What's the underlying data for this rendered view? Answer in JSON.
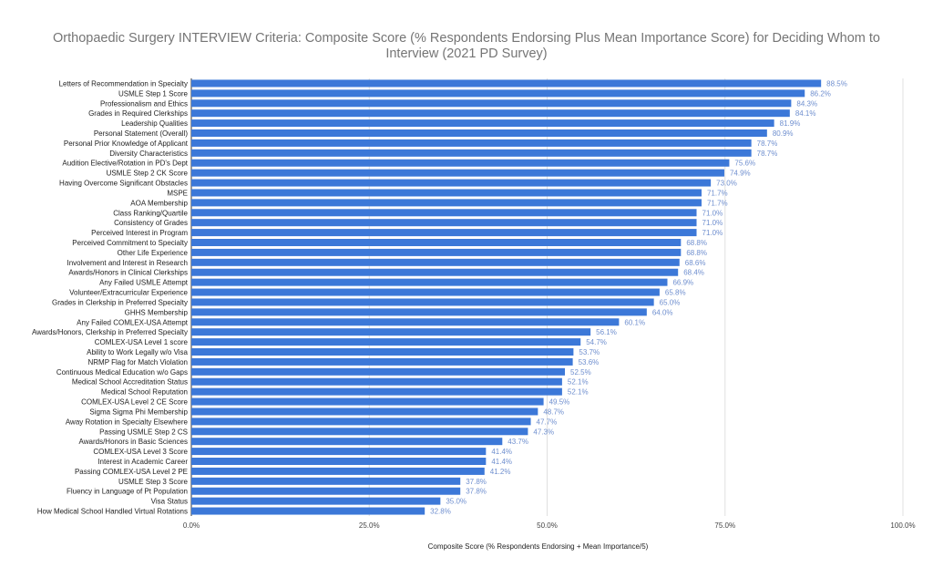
{
  "chart_data": {
    "type": "bar",
    "orientation": "horizontal",
    "title": "Orthopaedic Surgery INTERVIEW Criteria: Composite Score (% Respondents Endorsing Plus Mean Importance Score) for Deciding Whom to Interview (2021 PD Survey)",
    "xlabel": "Composite Score (% Respondents Endorsing + Mean Importance/5)",
    "ylabel": "",
    "xlim": [
      0,
      100
    ],
    "x_ticks": [
      "0.0%",
      "25.0%",
      "50.0%",
      "75.0%",
      "100.0%"
    ],
    "x_tick_values": [
      0,
      25,
      50,
      75,
      100
    ],
    "grid": "vertical",
    "bar_color": "#3c78d8",
    "value_label_color": "#6f8fcf",
    "categories": [
      "Letters of Recommendation in Specialty",
      "USMLE Step 1 Score",
      "Professionalism and Ethics",
      "Grades in Required Clerkships",
      "Leadership Qualities",
      "Personal Statement (Overall)",
      "Personal Prior Knowledge of Applicant",
      "Diversity Characteristics",
      "Audition Elective/Rotation in PD's Dept",
      "USMLE Step 2 CK Score",
      "Having Overcome Significant Obstacles",
      "MSPE",
      "AOA Membership",
      "Class Ranking/Quartile",
      "Consistency of Grades",
      "Perceived Interest in Program",
      "Perceived Commitment to Specialty",
      "Other Life Experience",
      "Involvement and Interest in Research",
      "Awards/Honors in Clinical Clerkships",
      "Any Failed USMLE Attempt",
      "Volunteer/Extracurricular Experience",
      "Grades in Clerkship in Preferred Specialty",
      "GHHS Membership",
      "Any Failed COMLEX-USA Attempt",
      "Awards/Honors, Clerkship in Preferred Specialty",
      "COMLEX-USA Level 1 score",
      "Ability to Work Legally w/o Visa",
      "NRMP Flag for Match Violation",
      "Continuous Medical Education w/o Gaps",
      "Medical School Accreditation Status",
      "Medical School Reputation",
      "COMLEX-USA Level 2 CE Score",
      "Sigma Sigma Phi Membership",
      "Away Rotation in Specialty Elsewhere",
      "Passing USMLE Step 2 CS",
      "Awards/Honors in Basic Sciences",
      "COMLEX-USA Level 3 Score",
      "Interest in Academic Career",
      "Passing COMLEX-USA Level 2 PE",
      "USMLE Step 3 Score",
      "Fluency in Language of Pt Population",
      "Visa Status",
      "How Medical School Handled Virtual Rotations"
    ],
    "values": [
      88.5,
      86.2,
      84.3,
      84.1,
      81.9,
      80.9,
      78.7,
      78.7,
      75.6,
      74.9,
      73.0,
      71.7,
      71.7,
      71.0,
      71.0,
      71.0,
      68.8,
      68.8,
      68.6,
      68.4,
      66.9,
      65.8,
      65.0,
      64.0,
      60.1,
      56.1,
      54.7,
      53.7,
      53.6,
      52.5,
      52.1,
      52.1,
      49.5,
      48.7,
      47.7,
      47.3,
      43.7,
      41.4,
      41.4,
      41.2,
      37.8,
      37.8,
      35.0,
      32.8
    ]
  }
}
